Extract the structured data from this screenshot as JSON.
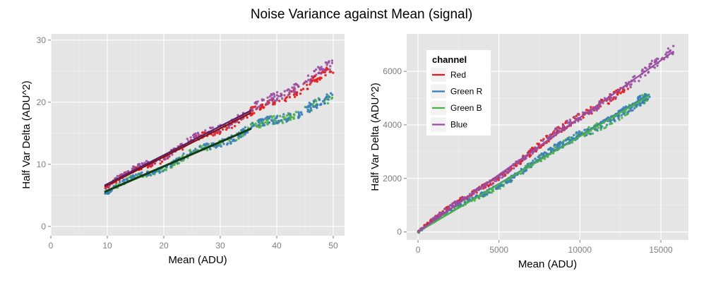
{
  "title": "Noise Variance against Mean (signal)",
  "colors": {
    "panel_bg": "#E5E5E5",
    "grid_major": "#FFFFFF",
    "grid_minor": "#F2F2F2",
    "tick_label": "#7F7F7F",
    "Red": "#E41A1C",
    "Green R": "#377EB8",
    "Green B": "#4DAF4A",
    "Blue": "#984EA3"
  },
  "chart_data": [
    {
      "type": "scatter",
      "title": "",
      "xlabel": "Mean (ADU)",
      "ylabel": "Half Var Delta (ADU^2)",
      "xlim": [
        0,
        52
      ],
      "ylim": [
        -1.5,
        31
      ],
      "xticks": [
        0,
        10,
        20,
        30,
        40,
        50
      ],
      "yticks": [
        0,
        10,
        20,
        30
      ],
      "grid": true,
      "legend": "none",
      "series": [
        {
          "name": "Red",
          "color": "#E41A1C",
          "x_range": [
            9.5,
            50
          ],
          "fit_line": {
            "x": [
              9.5,
              35.5
            ],
            "y": [
              6.4,
              18.3
            ]
          },
          "end_value": 25
        },
        {
          "name": "Green R",
          "color": "#377EB8",
          "x_range": [
            9.5,
            50
          ],
          "fit_line": {
            "x": [
              9.5,
              35.5
            ],
            "y": [
              5.6,
              15.8
            ]
          },
          "end_value": 20.5
        },
        {
          "name": "Green B",
          "color": "#4DAF4A",
          "x_range": [
            9.5,
            50
          ],
          "fit_line": {
            "x": [
              9.5,
              35.5
            ],
            "y": [
              5.5,
              15.7
            ]
          },
          "end_value": 20.5
        },
        {
          "name": "Blue",
          "color": "#984EA3",
          "x_range": [
            9.5,
            50
          ],
          "fit_line": {
            "x": [
              9.5,
              35.5
            ],
            "y": [
              6.6,
              18.7
            ]
          },
          "end_value": 26
        }
      ]
    },
    {
      "type": "scatter",
      "title": "",
      "xlabel": "Mean (ADU)",
      "ylabel": "Half Var Delta (ADU^2)",
      "xlim": [
        -700,
        16700
      ],
      "ylim": [
        -300,
        7400
      ],
      "xticks": [
        0,
        5000,
        10000,
        15000
      ],
      "yticks": [
        0,
        2000,
        4000,
        6000
      ],
      "grid": true,
      "legend": "top-left",
      "legend_title": "channel",
      "legend_entries": [
        "Red",
        "Green R",
        "Green B",
        "Blue"
      ],
      "series": [
        {
          "name": "Red",
          "color": "#E41A1C",
          "x_range": [
            0,
            13000
          ],
          "fit_line": {
            "x": [
              0,
              13000
            ],
            "y": [
              0,
              5550
            ]
          }
        },
        {
          "name": "Green R",
          "color": "#377EB8",
          "x_range": [
            0,
            14300
          ],
          "fit_line": {
            "x": [
              0,
              14300
            ],
            "y": [
              0,
              5150
            ]
          }
        },
        {
          "name": "Green B",
          "color": "#4DAF4A",
          "x_range": [
            0,
            14300
          ],
          "fit_line": {
            "x": [
              0,
              14300
            ],
            "y": [
              0,
              5100
            ]
          }
        },
        {
          "name": "Blue",
          "color": "#984EA3",
          "x_range": [
            0,
            15800
          ],
          "fit_line": {
            "x": [
              0,
              15800
            ],
            "y": [
              0,
              6750
            ]
          }
        }
      ]
    }
  ]
}
